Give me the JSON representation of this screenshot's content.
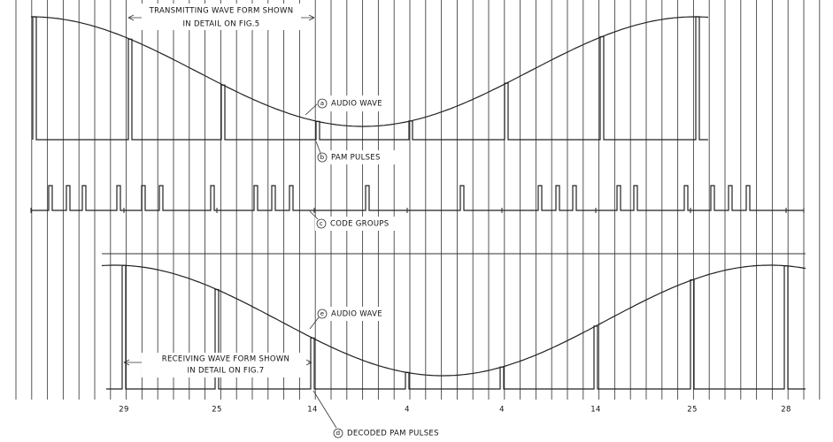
{
  "top_note": {
    "lines": [
      "TRANSMITTING WAVE FORM SHOWN",
      "IN DETAIL ON FIG.5"
    ]
  },
  "bottom_note": {
    "lines": [
      "RECEIVING WAVE FORM SHOWN",
      "IN DETAIL ON FIG.7"
    ]
  },
  "labels": [
    {
      "letter": "a",
      "text": "AUDIO WAVE"
    },
    {
      "letter": "b",
      "text": "PAM PULSES"
    },
    {
      "letter": "c",
      "text": "CODE GROUPS"
    },
    {
      "letter": "e",
      "text": "AUDIO WAVE"
    },
    {
      "letter": "d",
      "text": "DECODED PAM PULSES"
    }
  ],
  "pulse_numbers": [
    "29",
    "25",
    "14",
    "4",
    "4",
    "14",
    "25",
    "28"
  ]
}
